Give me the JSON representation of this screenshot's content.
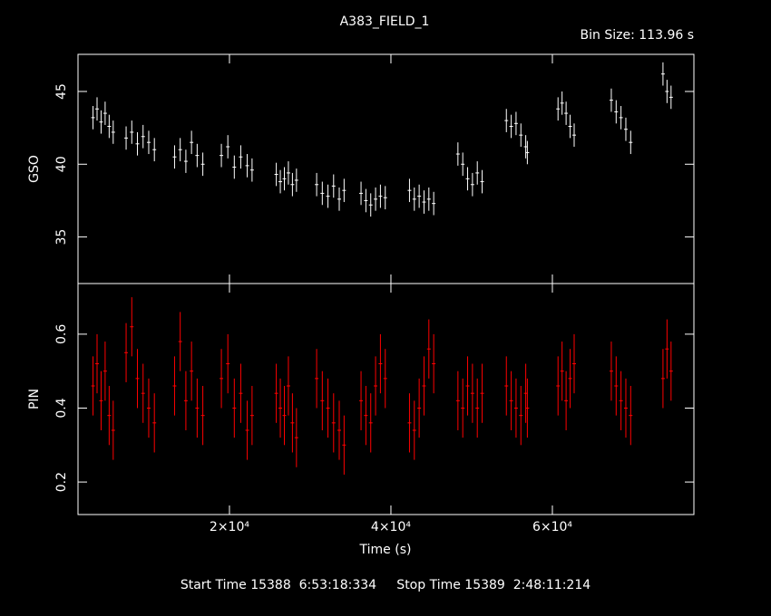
{
  "chart_data": {
    "type": "errorbar",
    "title": "A383_FIELD_1",
    "subtitle": "Bin Size: 113.96 s",
    "footer": "Start Time 15388  6:53:18:334     Stop Time 15389  2:48:11:214",
    "xlabel": "Time (s)",
    "xlim": [
      1240,
      77530
    ],
    "xticks": [
      {
        "value": 20000,
        "label": "2×10⁴"
      },
      {
        "value": 40000,
        "label": "4×10⁴"
      },
      {
        "value": 60000,
        "label": "6×10⁴"
      }
    ],
    "x": [
      3100,
      3600,
      4100,
      4600,
      5100,
      5600,
      7200,
      7900,
      8600,
      9300,
      10000,
      10700,
      13200,
      13900,
      14600,
      15300,
      16000,
      16700,
      19000,
      19800,
      20600,
      21400,
      22200,
      22800,
      25800,
      26300,
      26800,
      27300,
      27800,
      28300,
      30800,
      31500,
      32200,
      32900,
      33600,
      34200,
      36300,
      36900,
      37500,
      38100,
      38700,
      39300,
      42300,
      42900,
      43500,
      44100,
      44700,
      45300,
      48300,
      48900,
      49500,
      50100,
      50700,
      51300,
      54300,
      54900,
      55500,
      56100,
      56700,
      56900,
      60700,
      61200,
      61700,
      62200,
      62700,
      67300,
      67900,
      68500,
      69100,
      69700,
      73700,
      74200,
      74700
    ],
    "panels": [
      {
        "ylabel": "GSO",
        "color": "#ffffff",
        "ylim": [
          31.8,
          47.55
        ],
        "yticks": [
          35,
          40,
          45
        ],
        "error": 0.8,
        "values": [
          43.2,
          43.8,
          42.9,
          43.5,
          42.6,
          42.2,
          41.8,
          42.2,
          41.4,
          41.9,
          41.5,
          41.0,
          40.5,
          41.0,
          40.2,
          41.5,
          40.6,
          40.0,
          40.6,
          41.2,
          39.8,
          40.5,
          39.9,
          39.6,
          39.3,
          38.8,
          39.0,
          39.4,
          38.6,
          38.9,
          38.6,
          38.0,
          37.8,
          38.5,
          37.6,
          38.2,
          38.0,
          37.5,
          37.2,
          37.6,
          37.8,
          37.7,
          38.2,
          37.6,
          37.8,
          37.4,
          37.6,
          37.3,
          40.7,
          40.0,
          39.0,
          38.6,
          39.4,
          38.8,
          43.0,
          42.6,
          42.8,
          42.0,
          41.2,
          40.8,
          43.8,
          44.2,
          43.5,
          42.6,
          42.0,
          44.4,
          43.6,
          43.2,
          42.4,
          41.5,
          46.2,
          45.0,
          44.6
        ]
      },
      {
        "ylabel": "PIN",
        "color": "#ff0000",
        "ylim": [
          0.112,
          0.737
        ],
        "yticks": [
          0.2,
          0.4,
          0.6
        ],
        "error": 0.08,
        "values": [
          0.46,
          0.52,
          0.42,
          0.5,
          0.38,
          0.34,
          0.55,
          0.62,
          0.48,
          0.44,
          0.4,
          0.36,
          0.46,
          0.58,
          0.42,
          0.5,
          0.4,
          0.38,
          0.48,
          0.52,
          0.4,
          0.44,
          0.34,
          0.38,
          0.44,
          0.4,
          0.38,
          0.46,
          0.36,
          0.32,
          0.48,
          0.42,
          0.4,
          0.36,
          0.34,
          0.3,
          0.42,
          0.38,
          0.36,
          0.46,
          0.52,
          0.48,
          0.36,
          0.34,
          0.4,
          0.46,
          0.56,
          0.52,
          0.42,
          0.4,
          0.46,
          0.44,
          0.4,
          0.44,
          0.46,
          0.42,
          0.4,
          0.38,
          0.44,
          0.4,
          0.46,
          0.5,
          0.42,
          0.48,
          0.52,
          0.5,
          0.46,
          0.42,
          0.4,
          0.38,
          0.48,
          0.56,
          0.5
        ]
      }
    ]
  }
}
